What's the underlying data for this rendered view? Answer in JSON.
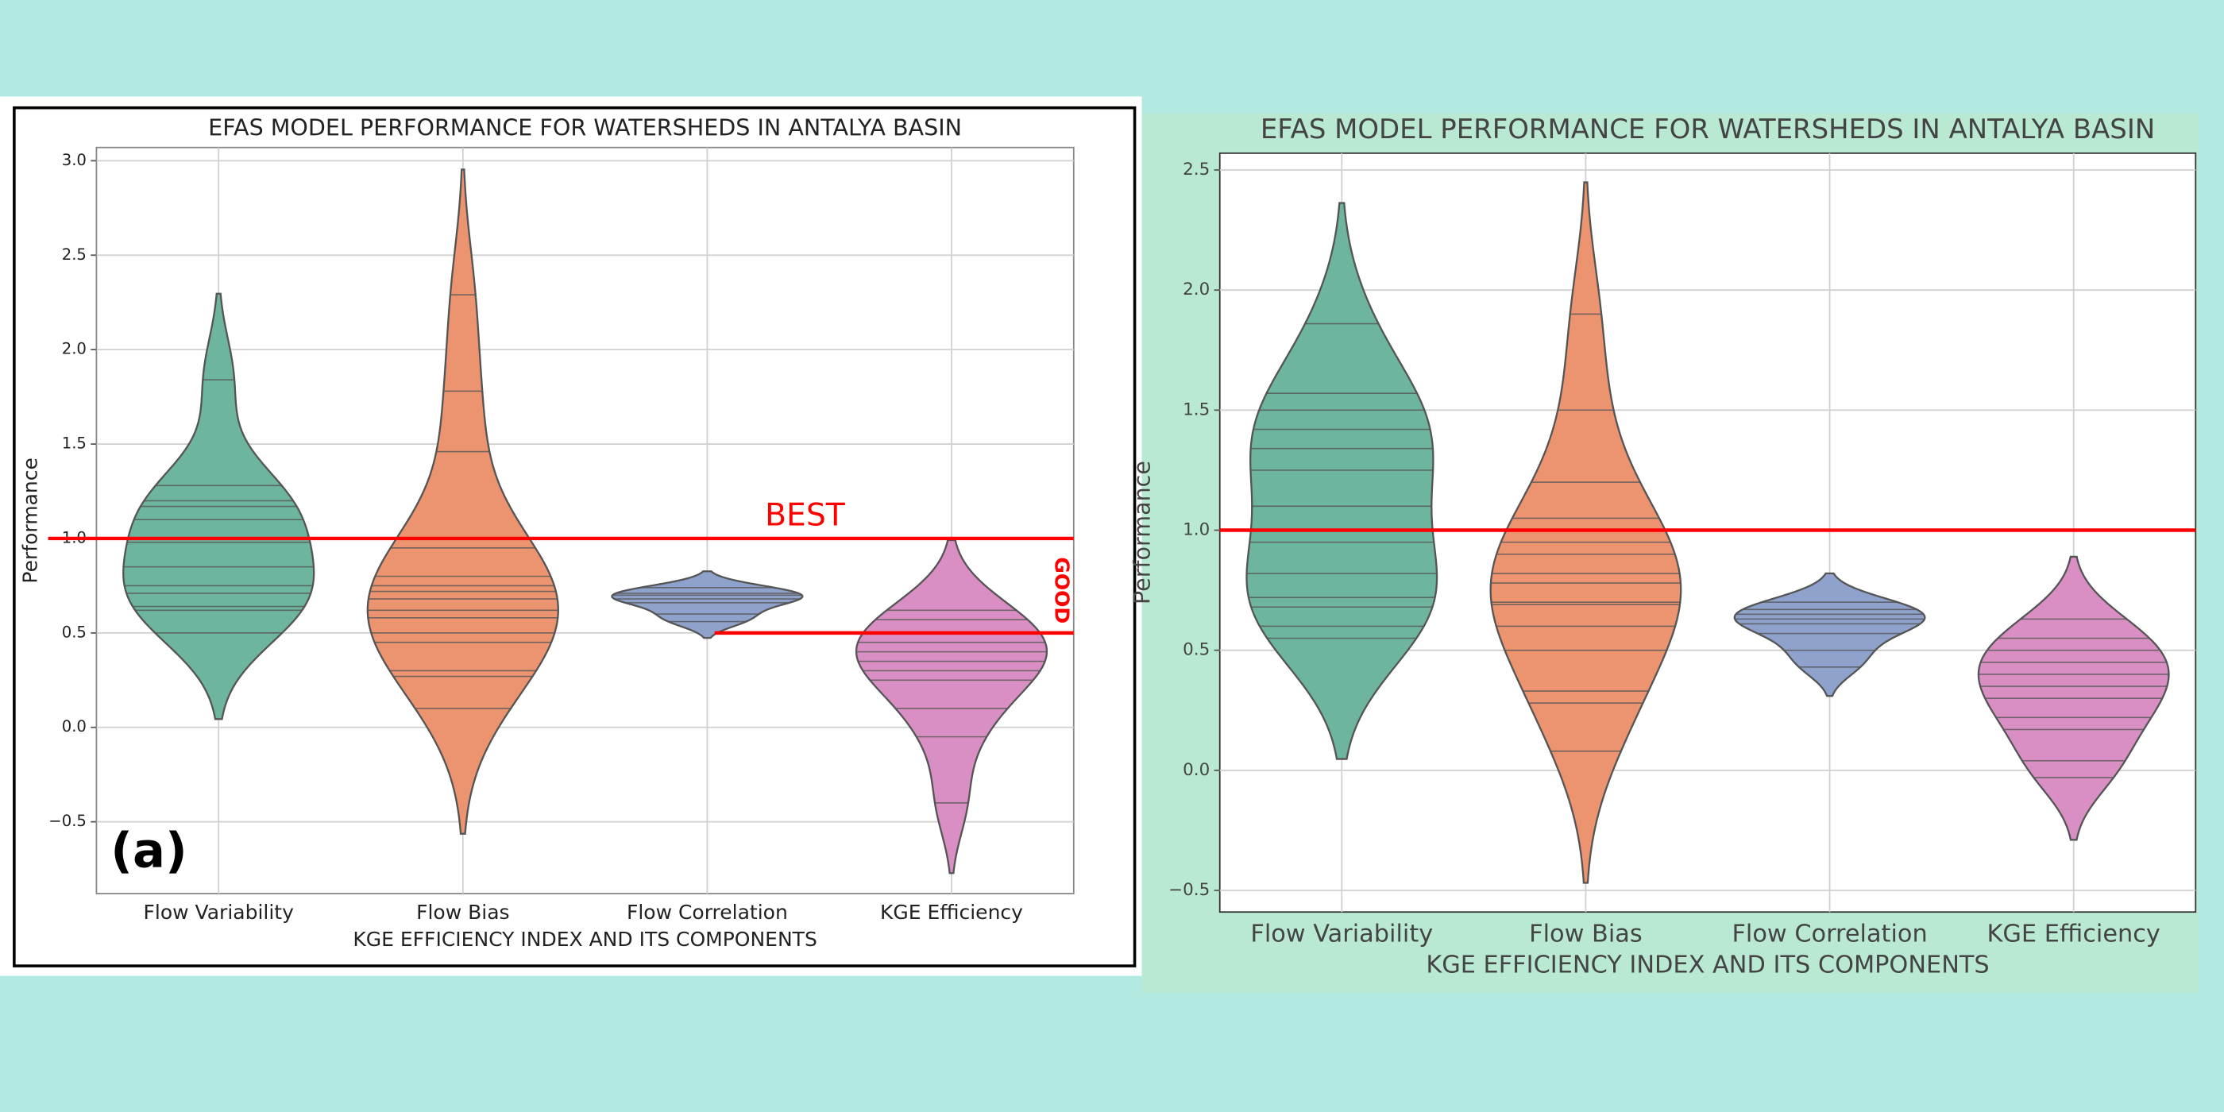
{
  "chart_data": [
    {
      "type": "violin",
      "title": "EFAS MODEL PERFORMANCE FOR WATERSHEDS IN ANTALYA BASIN",
      "x_label": "KGE EFFICIENCY INDEX AND ITS COMPONENTS",
      "y_label": "Performance",
      "panel_label": "(a)",
      "categories": [
        "Flow Variability",
        "Flow Bias",
        "Flow Correlation",
        "KGE Efficiency"
      ],
      "colors": [
        "#6db59f",
        "#ec9470",
        "#8fa2cc",
        "#da8fc4"
      ],
      "values": [
        [
          1.84,
          1.28,
          1.2,
          1.17,
          1.1,
          0.98,
          0.85,
          0.75,
          0.71,
          0.64,
          0.62,
          0.5
        ],
        [
          2.29,
          1.78,
          1.46,
          1.0,
          0.95,
          0.8,
          0.75,
          0.72,
          0.68,
          0.62,
          0.58,
          0.5,
          0.45,
          0.3,
          0.27,
          0.1
        ],
        [
          0.74,
          0.71,
          0.7,
          0.68,
          0.66,
          0.6,
          0.56
        ],
        [
          0.62,
          0.57,
          0.5,
          0.45,
          0.4,
          0.35,
          0.3,
          0.25,
          0.1,
          -0.05,
          -0.4
        ]
      ],
      "ylim": [
        -0.88,
        3.07
      ],
      "yticks": [
        {
          "value": -0.5,
          "label": "−0.5"
        },
        {
          "value": 0,
          "label": "0.0"
        },
        {
          "value": 0.5,
          "label": "0.5"
        },
        {
          "value": 1,
          "label": "1.0"
        },
        {
          "value": 1.5,
          "label": "1.5"
        },
        {
          "value": 2,
          "label": "2.0"
        },
        {
          "value": 2.5,
          "label": "2.5"
        },
        {
          "value": 3,
          "label": "3.0"
        }
      ],
      "grid": true,
      "reference_lines": [
        {
          "value": 1,
          "label": "BEST",
          "color": "#ff0000"
        },
        {
          "value": 0.5,
          "label": "GOOD",
          "color": "#ff0000"
        }
      ]
    },
    {
      "type": "violin",
      "title": "EFAS MODEL PERFORMANCE FOR WATERSHEDS IN ANTALYA BASIN",
      "x_label": "KGE EFFICIENCY INDEX AND ITS COMPONENTS",
      "y_label": "Performance",
      "categories": [
        "Flow Variability",
        "Flow Bias",
        "Flow Correlation",
        "KGE Efficiency"
      ],
      "colors": [
        "#6db59f",
        "#ec9470",
        "#8fa2cc",
        "#da8fc4"
      ],
      "values": [
        [
          1.86,
          1.57,
          1.5,
          1.42,
          1.34,
          1.25,
          1.1,
          0.95,
          0.82,
          0.72,
          0.68,
          0.6,
          0.55
        ],
        [
          1.9,
          1.5,
          1.2,
          1.05,
          0.95,
          0.9,
          0.82,
          0.78,
          0.7,
          0.69,
          0.6,
          0.5,
          0.33,
          0.28,
          0.08
        ],
        [
          0.7,
          0.67,
          0.65,
          0.63,
          0.61,
          0.57,
          0.5,
          0.43
        ],
        [
          0.63,
          0.55,
          0.5,
          0.45,
          0.4,
          0.35,
          0.3,
          0.22,
          0.17,
          0.04,
          -0.03
        ]
      ],
      "ylim": [
        -0.59,
        2.57
      ],
      "yticks": [
        {
          "value": -0.5,
          "label": "−0.5"
        },
        {
          "value": 0,
          "label": "0.0"
        },
        {
          "value": 0.5,
          "label": "0.5"
        },
        {
          "value": 1,
          "label": "1.0"
        },
        {
          "value": 1.5,
          "label": "1.5"
        },
        {
          "value": 2,
          "label": "2.0"
        },
        {
          "value": 2.5,
          "label": "2.5"
        }
      ],
      "grid": true,
      "reference_lines": [
        {
          "value": 1,
          "color": "#ff0000"
        }
      ]
    }
  ]
}
